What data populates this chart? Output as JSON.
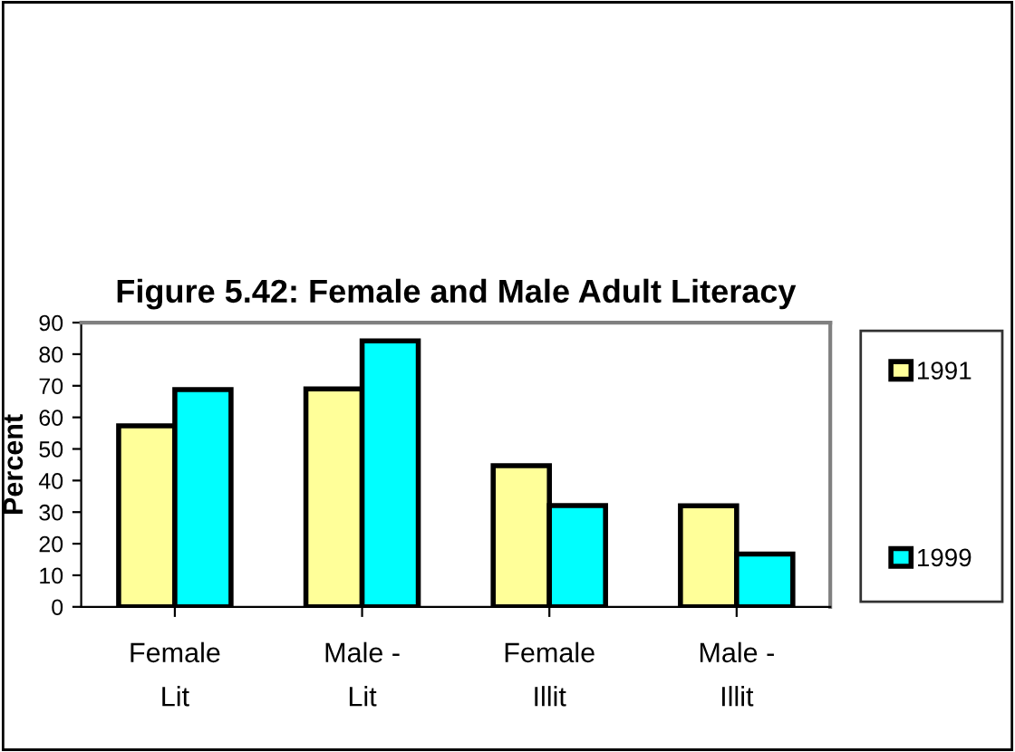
{
  "chart_data": {
    "type": "bar",
    "title": "Figure 5.42: Female and Male Adult Literacy",
    "ylabel": "Percent",
    "categories": [
      "Female\nLit",
      "Male -\nLit",
      "Female\nIllit",
      "Male -\nIllit"
    ],
    "series": [
      {
        "name": "1991",
        "color": "#ffff99",
        "values": [
          57.3,
          69,
          44.7,
          32
        ]
      },
      {
        "name": "1999",
        "color": "#00ffff",
        "values": [
          68.8,
          84.2,
          32.1,
          16.7
        ]
      }
    ],
    "ylim": [
      0,
      90
    ],
    "yticks": [
      0,
      10,
      20,
      30,
      40,
      50,
      60,
      70,
      80,
      90
    ],
    "grid": false,
    "legend": "right"
  }
}
